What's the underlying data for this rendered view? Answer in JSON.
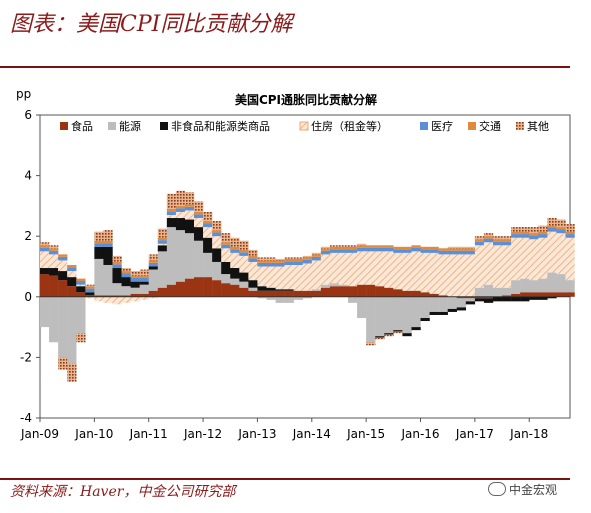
{
  "figure_title": "图表：美国CPI同比贡献分解",
  "source": "资料来源：Haver，中金公司研究部",
  "watermark": "中金宏观",
  "chart_data": {
    "type": "bar",
    "stacked": true,
    "title": "美国CPI通胀同比贡献分解",
    "ylabel": "pp",
    "ylim": [
      -4,
      6
    ],
    "yticks": [
      -4,
      -2,
      0,
      2,
      4,
      6
    ],
    "xticks": [
      "Jan-09",
      "Jan-10",
      "Jan-11",
      "Jan-12",
      "Jan-13",
      "Jan-14",
      "Jan-15",
      "Jan-16",
      "Jan-17",
      "Jan-18"
    ],
    "grid": false,
    "legend_placement": "top",
    "x_start": "2009-01",
    "x_end": "2018-09",
    "x": [
      "2009-01",
      "2009-03",
      "2009-05",
      "2009-07",
      "2009-09",
      "2009-11",
      "2010-01",
      "2010-03",
      "2010-05",
      "2010-07",
      "2010-09",
      "2010-11",
      "2011-01",
      "2011-03",
      "2011-05",
      "2011-07",
      "2011-09",
      "2011-11",
      "2012-01",
      "2012-03",
      "2012-05",
      "2012-07",
      "2012-09",
      "2012-11",
      "2013-01",
      "2013-03",
      "2013-05",
      "2013-07",
      "2013-09",
      "2013-11",
      "2014-01",
      "2014-03",
      "2014-05",
      "2014-07",
      "2014-09",
      "2014-11",
      "2015-01",
      "2015-03",
      "2015-05",
      "2015-07",
      "2015-09",
      "2015-11",
      "2016-01",
      "2016-03",
      "2016-05",
      "2016-07",
      "2016-09",
      "2016-11",
      "2017-01",
      "2017-03",
      "2017-05",
      "2017-07",
      "2017-09",
      "2017-11",
      "2018-01",
      "2018-03",
      "2018-05",
      "2018-07",
      "2018-09"
    ],
    "series": [
      {
        "name": "食品",
        "color": "#9a3412",
        "values": [
          0.75,
          0.7,
          0.55,
          0.35,
          0.15,
          0.05,
          0.05,
          0.05,
          0.05,
          0.05,
          0.1,
          0.1,
          0.2,
          0.3,
          0.4,
          0.5,
          0.6,
          0.65,
          0.65,
          0.55,
          0.45,
          0.4,
          0.3,
          0.2,
          0.2,
          0.2,
          0.2,
          0.2,
          0.2,
          0.2,
          0.2,
          0.3,
          0.35,
          0.35,
          0.35,
          0.4,
          0.4,
          0.35,
          0.3,
          0.25,
          0.2,
          0.2,
          0.15,
          0.1,
          0.05,
          0.0,
          -0.05,
          -0.05,
          -0.05,
          -0.05,
          0.0,
          0.05,
          0.1,
          0.15,
          0.15,
          0.15,
          0.15,
          0.15,
          0.15
        ]
      },
      {
        "name": "能源",
        "color": "#bdbdbd",
        "values": [
          -1.0,
          -1.5,
          -2.0,
          -2.2,
          -1.2,
          0.0,
          1.2,
          1.0,
          0.4,
          0.3,
          0.2,
          0.3,
          0.7,
          1.2,
          1.9,
          1.7,
          1.5,
          1.2,
          0.8,
          0.6,
          0.3,
          0.2,
          0.2,
          0.1,
          -0.05,
          -0.1,
          -0.2,
          -0.2,
          -0.1,
          -0.05,
          0.05,
          0.1,
          0.1,
          0.05,
          -0.2,
          -0.7,
          -1.5,
          -1.3,
          -1.2,
          -1.1,
          -1.2,
          -1.0,
          -0.7,
          -0.5,
          -0.5,
          -0.4,
          -0.3,
          -0.1,
          0.3,
          0.4,
          0.3,
          0.25,
          0.45,
          0.45,
          0.4,
          0.45,
          0.65,
          0.6,
          0.4
        ]
      },
      {
        "name": "非食品和能源类商品",
        "color": "#111111",
        "values": [
          0.2,
          0.25,
          0.3,
          0.3,
          0.2,
          0.1,
          0.4,
          0.6,
          0.5,
          0.3,
          0.2,
          0.1,
          0.1,
          0.2,
          0.3,
          0.4,
          0.45,
          0.45,
          0.5,
          0.45,
          0.4,
          0.35,
          0.3,
          0.25,
          0.15,
          0.1,
          0.05,
          0.05,
          0.0,
          0.0,
          0.0,
          0.0,
          0.0,
          0.0,
          0.0,
          0.0,
          0.0,
          -0.05,
          -0.05,
          -0.05,
          -0.1,
          -0.1,
          -0.1,
          -0.1,
          -0.1,
          -0.1,
          -0.1,
          -0.1,
          -0.1,
          -0.15,
          -0.15,
          -0.15,
          -0.15,
          -0.15,
          -0.1,
          -0.1,
          -0.05,
          0.0,
          0.0
        ]
      },
      {
        "name": "住房（租金等）",
        "color": "#f3c8a4",
        "values": [
          0.55,
          0.45,
          0.35,
          0.2,
          0.05,
          -0.05,
          -0.15,
          -0.2,
          -0.25,
          -0.2,
          -0.15,
          -0.1,
          -0.05,
          0.05,
          0.1,
          0.2,
          0.3,
          0.3,
          0.35,
          0.4,
          0.45,
          0.5,
          0.55,
          0.6,
          0.65,
          0.7,
          0.75,
          0.8,
          0.85,
          0.9,
          0.95,
          1.0,
          1.0,
          1.05,
          1.1,
          1.1,
          1.1,
          1.15,
          1.2,
          1.2,
          1.25,
          1.3,
          1.3,
          1.35,
          1.35,
          1.4,
          1.4,
          1.4,
          1.4,
          1.4,
          1.4,
          1.4,
          1.4,
          1.35,
          1.35,
          1.35,
          1.35,
          1.35,
          1.4
        ]
      },
      {
        "name": "医疗",
        "color": "#5b8fd6",
        "values": [
          0.12,
          0.12,
          0.12,
          0.12,
          0.12,
          0.12,
          0.12,
          0.12,
          0.12,
          0.12,
          0.12,
          0.12,
          0.12,
          0.12,
          0.12,
          0.12,
          0.12,
          0.12,
          0.12,
          0.12,
          0.12,
          0.12,
          0.12,
          0.12,
          0.12,
          0.12,
          0.12,
          0.12,
          0.12,
          0.12,
          0.12,
          0.12,
          0.12,
          0.12,
          0.12,
          0.12,
          0.12,
          0.12,
          0.12,
          0.12,
          0.12,
          0.12,
          0.12,
          0.12,
          0.12,
          0.12,
          0.12,
          0.12,
          0.12,
          0.12,
          0.12,
          0.12,
          0.12,
          0.12,
          0.12,
          0.12,
          0.12,
          0.12,
          0.12
        ]
      },
      {
        "name": "交通",
        "color": "#e08a3c",
        "values": [
          0.08,
          0.08,
          0.08,
          0.08,
          0.08,
          0.08,
          0.08,
          0.08,
          0.08,
          0.08,
          0.08,
          0.08,
          0.08,
          0.08,
          0.08,
          0.08,
          0.08,
          0.08,
          0.08,
          0.08,
          0.08,
          0.08,
          0.08,
          0.08,
          0.08,
          0.08,
          0.08,
          0.08,
          0.08,
          0.08,
          0.08,
          0.08,
          0.08,
          0.08,
          0.08,
          0.08,
          0.08,
          0.08,
          0.08,
          0.08,
          0.08,
          0.08,
          0.08,
          0.08,
          0.08,
          0.08,
          0.08,
          0.08,
          0.08,
          0.08,
          0.08,
          0.08,
          0.08,
          0.08,
          0.08,
          0.08,
          0.08,
          0.08,
          0.08
        ]
      },
      {
        "name": "其他",
        "color": "#b0602a",
        "values": [
          0.1,
          0.1,
          -0.4,
          -0.6,
          -0.3,
          0.05,
          0.3,
          0.35,
          0.2,
          0.1,
          0.15,
          0.2,
          0.2,
          0.3,
          0.5,
          0.5,
          0.4,
          0.35,
          0.3,
          0.3,
          0.3,
          0.3,
          0.3,
          0.2,
          0.1,
          0.1,
          0.05,
          0.05,
          0.05,
          0.05,
          0.05,
          0.05,
          0.05,
          0.05,
          0.05,
          0.05,
          -0.1,
          -0.05,
          -0.05,
          -0.05,
          0.0,
          0.0,
          0.0,
          0.0,
          0.0,
          0.05,
          0.05,
          0.05,
          0.1,
          0.1,
          0.1,
          0.1,
          0.15,
          0.15,
          0.2,
          0.2,
          0.25,
          0.25,
          0.25
        ]
      }
    ]
  }
}
